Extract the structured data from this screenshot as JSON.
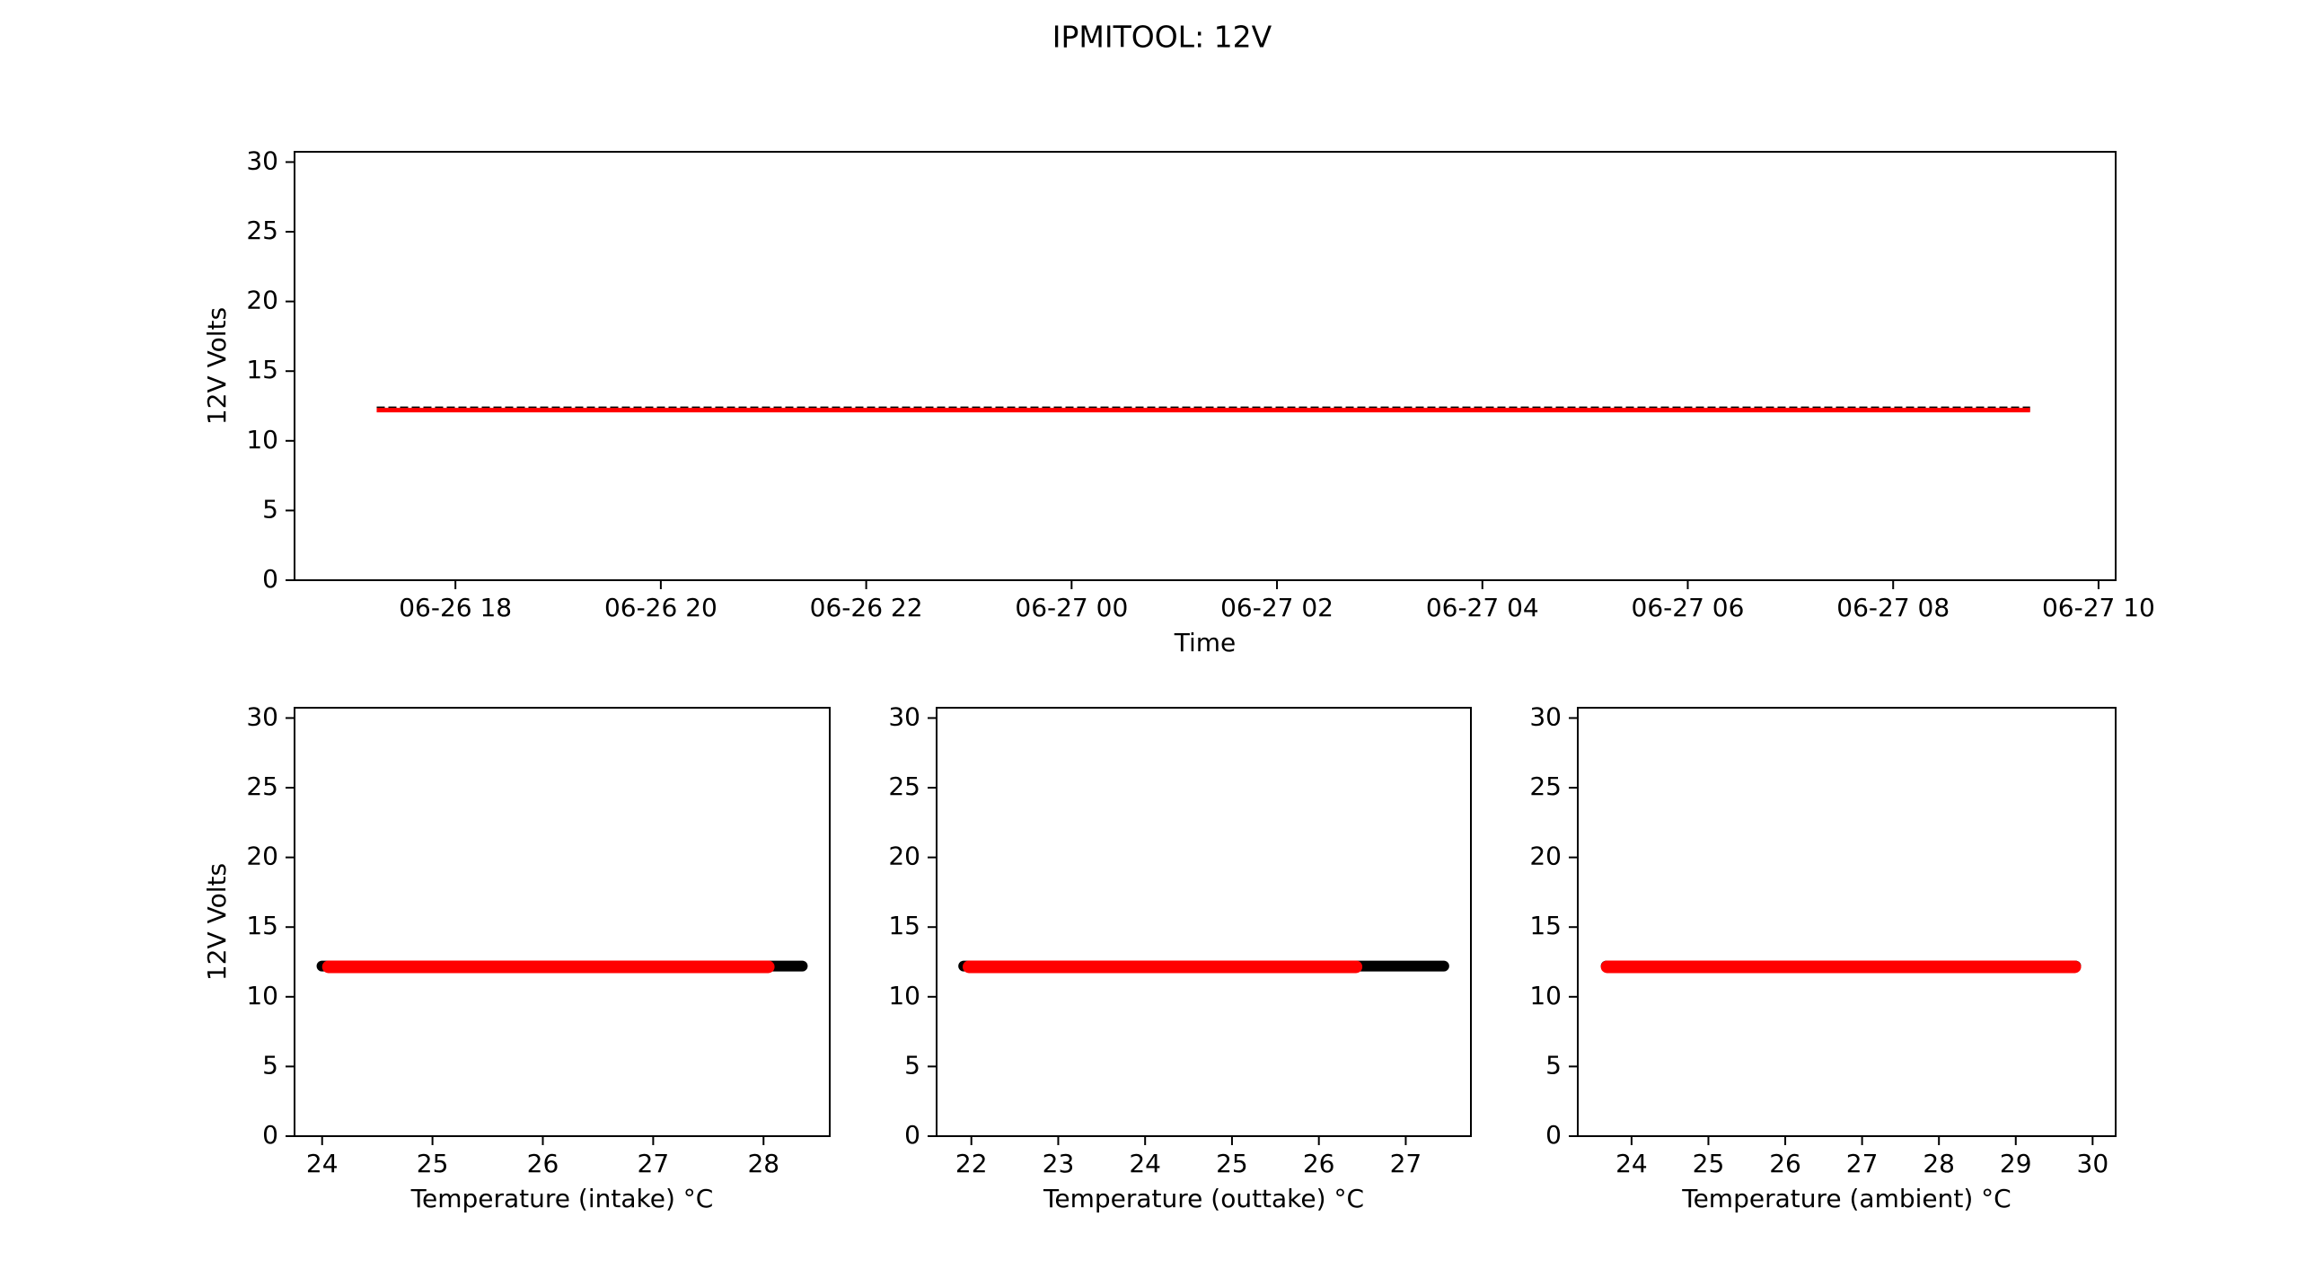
{
  "figure": {
    "title": "IPMITOOL: 12V",
    "colors": {
      "series_black": "#000000",
      "series_red": "#ff0000",
      "axes": "#000000"
    }
  },
  "chart_data": [
    {
      "type": "scatter",
      "xlabel": "Time",
      "ylabel": "12V Volts",
      "ylim": [
        0,
        30
      ],
      "yticks": [
        0,
        5,
        10,
        15,
        20,
        25,
        30
      ],
      "xlim": [
        "06-26 16:26",
        "06-27 10:10"
      ],
      "xticks": [
        "06-26 18",
        "06-26 20",
        "06-26 22",
        "06-27 00",
        "06-27 02",
        "06-27 04",
        "06-27 06",
        "06-27 08",
        "06-27 10"
      ],
      "grid": false,
      "series": [
        {
          "color": "black",
          "x_range": [
            "06-26 17:14",
            "06-27 09:20"
          ],
          "y": 12.3
        },
        {
          "color": "red",
          "x_range": [
            "06-26 17:14",
            "06-27 09:20"
          ],
          "y": 12.2
        }
      ]
    },
    {
      "type": "scatter",
      "xlabel": "Temperature (intake) °C",
      "ylabel": "12V Volts",
      "ylim": [
        0,
        30
      ],
      "yticks": [
        0,
        5,
        10,
        15,
        20,
        25,
        30
      ],
      "xlim": [
        23.75,
        28.6
      ],
      "xticks": [
        24,
        25,
        26,
        27,
        28
      ],
      "grid": false,
      "series": [
        {
          "color": "black",
          "x_range": [
            23.95,
            28.4
          ],
          "y": 12.2
        },
        {
          "color": "red",
          "x_range": [
            24.0,
            28.1
          ],
          "y": 12.15
        }
      ]
    },
    {
      "type": "scatter",
      "xlabel": "Temperature (outtake) °C",
      "ylabel": "",
      "ylim": [
        0,
        30
      ],
      "yticks": [
        0,
        5,
        10,
        15,
        20,
        25,
        30
      ],
      "xlim": [
        21.6,
        27.75
      ],
      "xticks": [
        22,
        23,
        24,
        25,
        26,
        27
      ],
      "grid": false,
      "series": [
        {
          "color": "black",
          "x_range": [
            21.85,
            27.5
          ],
          "y": 12.2
        },
        {
          "color": "red",
          "x_range": [
            21.9,
            26.5
          ],
          "y": 12.15
        }
      ]
    },
    {
      "type": "scatter",
      "xlabel": "Temperature (ambient) °C",
      "ylabel": "",
      "ylim": [
        0,
        30
      ],
      "yticks": [
        0,
        5,
        10,
        15,
        20,
        25,
        30
      ],
      "xlim": [
        23.3,
        30.3
      ],
      "xticks": [
        24,
        25,
        26,
        27,
        28,
        29,
        30
      ],
      "grid": false,
      "series": [
        {
          "color": "black",
          "x_range": [
            23.6,
            29.85
          ],
          "y": 12.2
        },
        {
          "color": "red",
          "x_range": [
            23.6,
            29.85
          ],
          "y": 12.15
        }
      ]
    }
  ]
}
